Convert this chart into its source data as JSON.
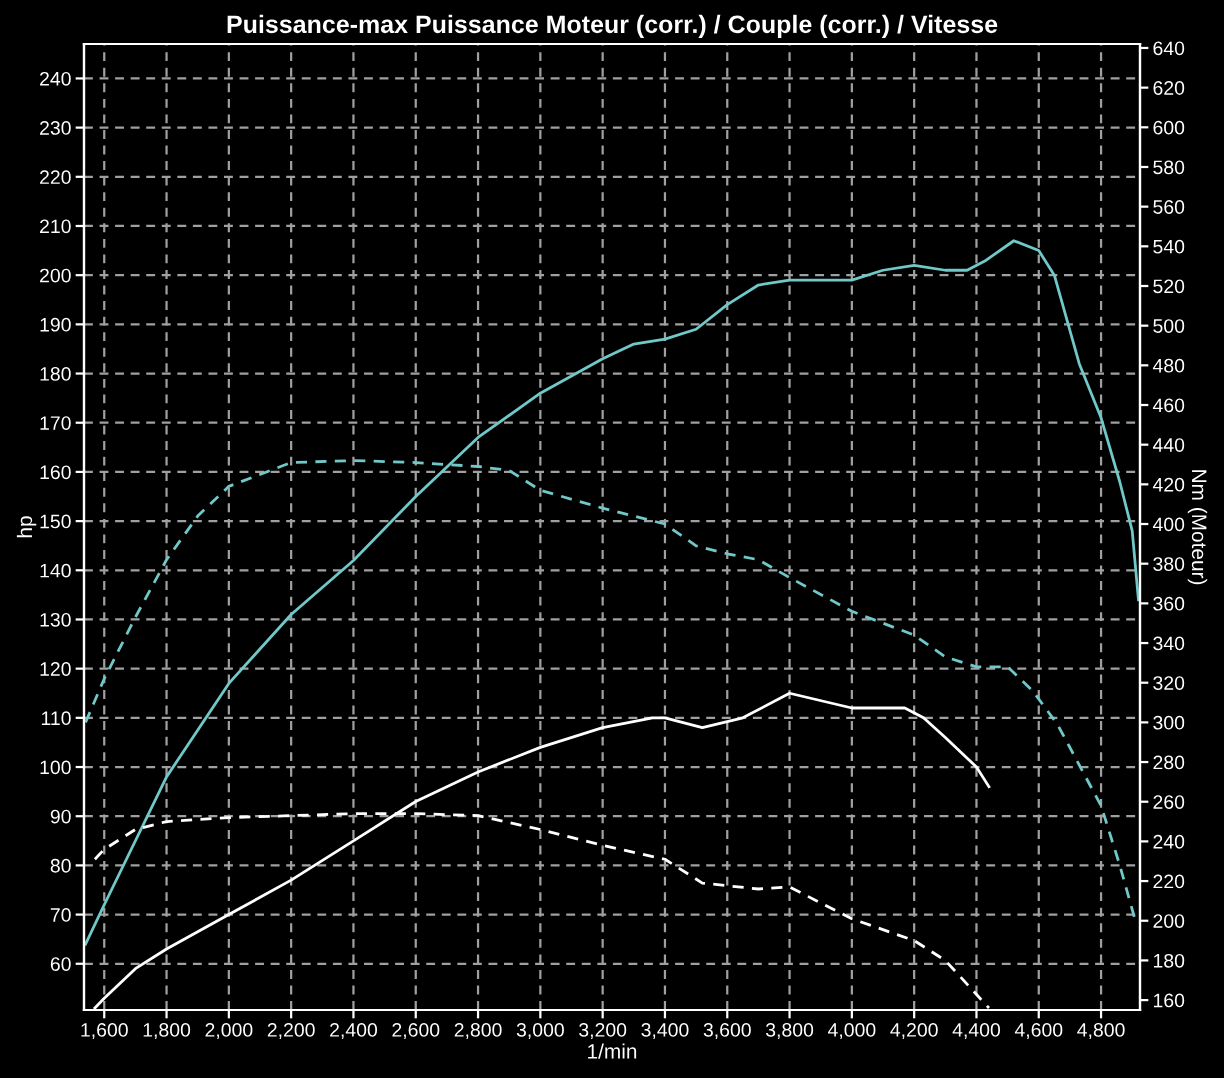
{
  "chart_data": {
    "type": "line",
    "title": "Puissance-max Puissance Moteur (corr.) / Couple (corr.) / Vitesse",
    "xlabel": "1/min",
    "ylabel": "hp",
    "y2label": "Nm (Moteur)",
    "xlim": [
      1535,
      4925
    ],
    "xticks": [
      {
        "value": 1600,
        "label": "1,600"
      },
      {
        "value": 1800,
        "label": "1,800"
      },
      {
        "value": 2000,
        "label": "2,000"
      },
      {
        "value": 2200,
        "label": "2,200"
      },
      {
        "value": 2400,
        "label": "2,400"
      },
      {
        "value": 2600,
        "label": "2,600"
      },
      {
        "value": 2800,
        "label": "2,800"
      },
      {
        "value": 3000,
        "label": "3,000"
      },
      {
        "value": 3200,
        "label": "3,200"
      },
      {
        "value": 3400,
        "label": "3,400"
      },
      {
        "value": 3600,
        "label": "3,600"
      },
      {
        "value": 3800,
        "label": "3,800"
      },
      {
        "value": 4000,
        "label": "4,000"
      },
      {
        "value": 4200,
        "label": "4,200"
      },
      {
        "value": 4400,
        "label": "4,400"
      },
      {
        "value": 4600,
        "label": "4,600"
      },
      {
        "value": 4800,
        "label": "4,800"
      }
    ],
    "ylim": [
      50.6,
      247
    ],
    "yticks": [
      60,
      70,
      80,
      90,
      100,
      110,
      120,
      130,
      140,
      150,
      160,
      170,
      180,
      190,
      200,
      210,
      220,
      230,
      240
    ],
    "y2lim": [
      155,
      642
    ],
    "y2ticks": [
      160,
      180,
      200,
      220,
      240,
      260,
      280,
      300,
      320,
      340,
      360,
      380,
      400,
      420,
      440,
      460,
      480,
      500,
      520,
      540,
      560,
      580,
      600,
      620,
      640
    ],
    "grid": true,
    "marker": "none",
    "series": [
      {
        "color": "#70c8c8",
        "line_style": "solid",
        "x": [
          1540,
          1600,
          1800,
          2000,
          2200,
          2400,
          2600,
          2800,
          3000,
          3200,
          3300,
          3400,
          3500,
          3600,
          3700,
          3800,
          4000,
          4100,
          4200,
          4300,
          4370,
          4430,
          4520,
          4600,
          4650,
          4730,
          4800,
          4860,
          4900,
          4920
        ],
        "values": [
          64,
          72,
          98,
          117,
          131,
          142,
          155,
          167,
          176,
          183,
          186,
          187,
          189,
          194,
          198,
          199,
          199,
          201,
          202,
          201,
          201,
          203,
          207,
          205,
          200,
          182,
          171,
          158,
          148,
          134
        ]
      },
      {
        "color": "#70c8c8",
        "line_style": "dashed",
        "axis": "y2",
        "x": [
          1540,
          1600,
          1700,
          1800,
          1900,
          2000,
          2200,
          2400,
          2600,
          2800,
          2900,
          3000,
          3200,
          3400,
          3500,
          3600,
          3700,
          3800,
          4000,
          4200,
          4300,
          4400,
          4500,
          4580,
          4660,
          4800,
          4860,
          4910
        ],
        "values": [
          300,
          322,
          353,
          382,
          404,
          419,
          431,
          432,
          431,
          429,
          427,
          417,
          408,
          400,
          389,
          385,
          382,
          373,
          356,
          344,
          333,
          328,
          328,
          316,
          299,
          258,
          228,
          200
        ]
      },
      {
        "color": "#ffffff",
        "line_style": "solid",
        "x": [
          1570,
          1600,
          1700,
          1800,
          2000,
          2200,
          2400,
          2600,
          2800,
          3000,
          3200,
          3360,
          3400,
          3520,
          3650,
          3800,
          4000,
          4170,
          4230,
          4300,
          4400,
          4440
        ],
        "values": [
          51,
          53,
          59,
          63,
          70,
          77,
          85,
          93,
          99,
          104,
          108,
          110,
          110,
          108,
          110,
          115,
          112,
          112,
          110,
          106,
          100,
          96
        ]
      },
      {
        "color": "#ffffff",
        "line_style": "dashed",
        "axis": "y2",
        "x": [
          1570,
          1600,
          1700,
          1800,
          2000,
          2400,
          2600,
          2800,
          3000,
          3200,
          3400,
          3520,
          3700,
          3800,
          4000,
          4200,
          4300,
          4440
        ],
        "values": [
          231,
          236,
          246,
          250,
          252,
          254,
          254,
          253,
          246,
          238,
          231,
          219,
          216,
          217,
          201,
          190,
          180,
          156
        ]
      }
    ]
  }
}
